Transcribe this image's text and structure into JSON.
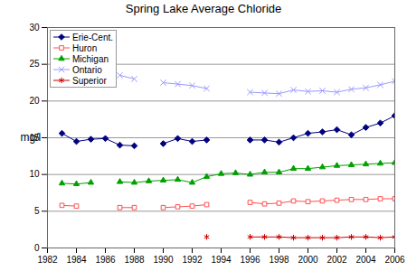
{
  "chart_data": {
    "type": "line",
    "title": "Spring Lake Average Chloride",
    "y_label": "mg/l",
    "x": [
      1982,
      1983,
      1984,
      1985,
      1986,
      1987,
      1988,
      1989,
      1990,
      1991,
      1992,
      1993,
      1994,
      1995,
      1996,
      1997,
      1998,
      1999,
      2000,
      2001,
      2002,
      2003,
      2004,
      2005,
      2006
    ],
    "series": [
      {
        "name": "Erie-Cent.",
        "color": "#000080",
        "marker": "diamond",
        "values": [
          null,
          15.6,
          14.5,
          14.8,
          14.9,
          14.0,
          13.9,
          null,
          14.2,
          14.9,
          14.5,
          14.7,
          null,
          null,
          14.7,
          14.7,
          14.4,
          15.0,
          15.6,
          15.8,
          16.1,
          15.4,
          16.4,
          17.0,
          18.0
        ]
      },
      {
        "name": "Huron",
        "color": "#ff5050",
        "marker": "square",
        "values": [
          null,
          5.8,
          5.7,
          null,
          null,
          5.5,
          5.5,
          null,
          5.5,
          5.6,
          5.7,
          5.9,
          null,
          null,
          6.2,
          6.0,
          6.1,
          6.4,
          6.3,
          6.4,
          6.5,
          6.6,
          6.6,
          6.7,
          6.7
        ]
      },
      {
        "name": "Michigan",
        "color": "#00a000",
        "marker": "triangle",
        "values": [
          null,
          8.8,
          8.7,
          8.9,
          null,
          9.0,
          8.9,
          9.1,
          9.2,
          9.3,
          8.9,
          9.7,
          10.1,
          10.2,
          10.0,
          10.3,
          10.3,
          10.8,
          10.8,
          11.0,
          11.2,
          11.3,
          11.4,
          11.5,
          11.6
        ]
      },
      {
        "name": "Ontario",
        "color": "#9999ff",
        "marker": "times",
        "values": [
          null,
          null,
          null,
          null,
          null,
          23.5,
          23.0,
          null,
          22.5,
          22.3,
          22.1,
          21.7,
          null,
          null,
          21.2,
          21.1,
          21.0,
          21.5,
          21.3,
          21.4,
          21.2,
          21.6,
          21.8,
          22.2,
          22.7
        ]
      },
      {
        "name": "Superior",
        "color": "#cc0000",
        "marker": "asterisk",
        "values": [
          null,
          null,
          null,
          null,
          null,
          null,
          null,
          null,
          null,
          null,
          null,
          1.5,
          null,
          null,
          1.5,
          1.5,
          1.5,
          1.4,
          1.4,
          1.4,
          1.4,
          1.5,
          1.5,
          1.4,
          1.5
        ]
      }
    ],
    "xlim": [
      1982,
      2006
    ],
    "xticks": [
      1982,
      1984,
      1986,
      1988,
      1990,
      1992,
      1994,
      1996,
      1998,
      2000,
      2002,
      2004,
      2006
    ],
    "ylim": [
      0,
      30
    ],
    "yticks": [
      0,
      5,
      10,
      15,
      20,
      25,
      30
    ],
    "grid": true,
    "legend": "top-left"
  }
}
